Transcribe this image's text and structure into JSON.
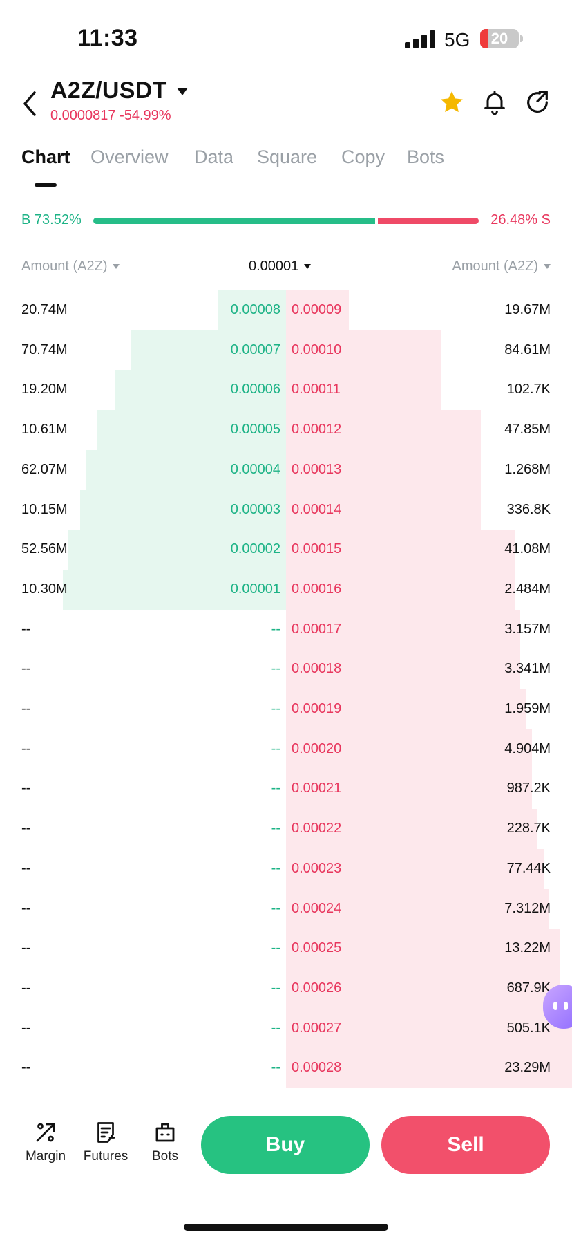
{
  "status_bar": {
    "time": "11:33",
    "network": "5G",
    "battery": "20",
    "battery_level": 0.2
  },
  "header": {
    "pair": "A2Z/USDT",
    "price_change": "0.0000817 -54.99%"
  },
  "tabs": [
    {
      "label": "Chart",
      "active": true
    },
    {
      "label": "Overview",
      "active": false
    },
    {
      "label": "Data",
      "active": false
    },
    {
      "label": "Square",
      "active": false
    },
    {
      "label": "Copy",
      "active": false
    },
    {
      "label": "Bots",
      "active": false
    }
  ],
  "ratio": {
    "buy_label": "B",
    "buy_pct": "73.52%",
    "sell_pct": "26.48%",
    "sell_label": "S",
    "buy_fraction": 0.7352
  },
  "columns": {
    "bid_amount": "Amount (A2Z)",
    "precision": "0.00001",
    "ask_amount": "Amount (A2Z)"
  },
  "orderbook": {
    "rows": [
      {
        "bid_qty": "20.74M",
        "bid_price": "0.00008",
        "ask_price": "0.00009",
        "ask_qty": "19.67M"
      },
      {
        "bid_qty": "70.74M",
        "bid_price": "0.00007",
        "ask_price": "0.00010",
        "ask_qty": "84.61M"
      },
      {
        "bid_qty": "19.20M",
        "bid_price": "0.00006",
        "ask_price": "0.00011",
        "ask_qty": "102.7K"
      },
      {
        "bid_qty": "10.61M",
        "bid_price": "0.00005",
        "ask_price": "0.00012",
        "ask_qty": "47.85M"
      },
      {
        "bid_qty": "62.07M",
        "bid_price": "0.00004",
        "ask_price": "0.00013",
        "ask_qty": "1.268M"
      },
      {
        "bid_qty": "10.15M",
        "bid_price": "0.00003",
        "ask_price": "0.00014",
        "ask_qty": "336.8K"
      },
      {
        "bid_qty": "52.56M",
        "bid_price": "0.00002",
        "ask_price": "0.00015",
        "ask_qty": "41.08M"
      },
      {
        "bid_qty": "10.30M",
        "bid_price": "0.00001",
        "ask_price": "0.00016",
        "ask_qty": "2.484M"
      },
      {
        "bid_qty": "--",
        "bid_price": "--",
        "ask_price": "0.00017",
        "ask_qty": "3.157M"
      },
      {
        "bid_qty": "--",
        "bid_price": "--",
        "ask_price": "0.00018",
        "ask_qty": "3.341M"
      },
      {
        "bid_qty": "--",
        "bid_price": "--",
        "ask_price": "0.00019",
        "ask_qty": "1.959M"
      },
      {
        "bid_qty": "--",
        "bid_price": "--",
        "ask_price": "0.00020",
        "ask_qty": "4.904M"
      },
      {
        "bid_qty": "--",
        "bid_price": "--",
        "ask_price": "0.00021",
        "ask_qty": "987.2K"
      },
      {
        "bid_qty": "--",
        "bid_price": "--",
        "ask_price": "0.00022",
        "ask_qty": "228.7K"
      },
      {
        "bid_qty": "--",
        "bid_price": "--",
        "ask_price": "0.00023",
        "ask_qty": "77.44K"
      },
      {
        "bid_qty": "--",
        "bid_price": "--",
        "ask_price": "0.00024",
        "ask_qty": "7.312M"
      },
      {
        "bid_qty": "--",
        "bid_price": "--",
        "ask_price": "0.00025",
        "ask_qty": "13.22M"
      },
      {
        "bid_qty": "--",
        "bid_price": "--",
        "ask_price": "0.00026",
        "ask_qty": "687.9K"
      },
      {
        "bid_qty": "--",
        "bid_price": "--",
        "ask_price": "0.00027",
        "ask_qty": "505.1K"
      },
      {
        "bid_qty": "--",
        "bid_price": "--",
        "ask_price": "0.00028",
        "ask_qty": "23.29M"
      }
    ],
    "bid_depth_fraction": [
      0.12,
      0.27,
      0.3,
      0.33,
      0.35,
      0.36,
      0.38,
      0.39
    ],
    "ask_depth_fraction": [
      0.11,
      0.27,
      0.27,
      0.34,
      0.34,
      0.34,
      0.4,
      0.4,
      0.41,
      0.41,
      0.42,
      0.43,
      0.43,
      0.44,
      0.45,
      0.46,
      0.48,
      0.48,
      0.5,
      0.51
    ]
  },
  "bottom_bar": {
    "margin_label": "Margin",
    "futures_label": "Futures",
    "bots_label": "Bots",
    "buy_label": "Buy",
    "sell_label": "Sell"
  },
  "colors": {
    "buy": "#26bd88",
    "sell": "#ef4a67",
    "favorite": "#f5b800"
  },
  "icons": [
    "back-arrow-icon",
    "caret-down-icon",
    "star-icon",
    "bell-icon",
    "share-icon",
    "margin-icon",
    "futures-icon",
    "bots-icon",
    "assistant-icon"
  ]
}
